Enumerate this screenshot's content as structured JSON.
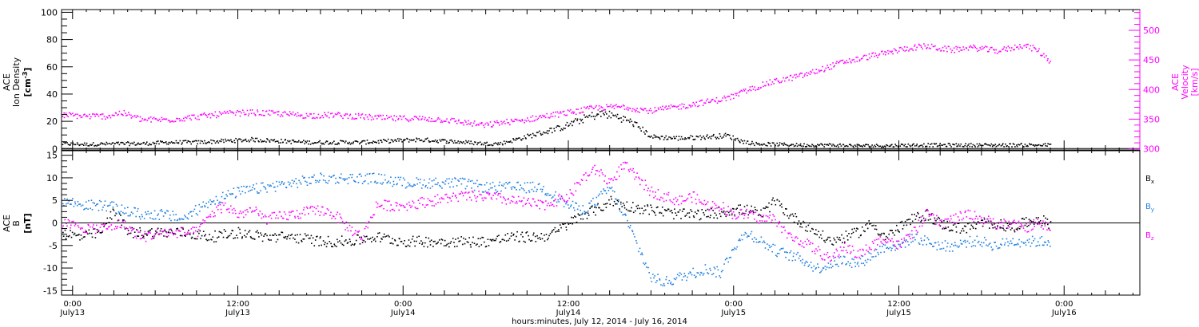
{
  "figure": {
    "xlabel": "hours:minutes, July 12, 2014 - July 16, 2014",
    "x_ticks": [
      {
        "t": 0,
        "time": "0:00",
        "date": "July13"
      },
      {
        "t": 12,
        "time": "12:00",
        "date": "July13"
      },
      {
        "t": 24,
        "time": "0:00",
        "date": "July14"
      },
      {
        "t": 36,
        "time": "12:00",
        "date": "July14"
      },
      {
        "t": 48,
        "time": "0:00",
        "date": "July15"
      },
      {
        "t": 60,
        "time": "12:00",
        "date": "July15"
      },
      {
        "t": 72,
        "time": "0:00",
        "date": "July16"
      }
    ],
    "xlim": [
      -0.8,
      77.5
    ]
  },
  "colors": {
    "black": "#000000",
    "magenta": "#ff00ff",
    "blue": "#1f7fe0"
  },
  "chart_data": [
    {
      "type": "scatter",
      "ylabel_lines": [
        "ACE",
        "Ion Density"
      ],
      "yunit_base": "[cm",
      "yunit_sup": "-3",
      "yunit_end": "]",
      "ylim": [
        -1,
        102
      ],
      "yticks": [
        0,
        20,
        40,
        60,
        80,
        100
      ],
      "right_axis": {
        "ylabel_lines": [
          "ACE",
          "Velocity",
          "[km/s]"
        ],
        "ylim": [
          298,
          535
        ],
        "yticks": [
          300,
          350,
          400,
          450,
          500
        ]
      },
      "series": [
        {
          "name": "Density",
          "color": "black",
          "x": [
            -0.8,
            1,
            3,
            5,
            7,
            9,
            11,
            13,
            15,
            17,
            19,
            21,
            23,
            25,
            27,
            28.5,
            30,
            31,
            32.5,
            34,
            35.5,
            36.5,
            37.5,
            38.5,
            39.5,
            40.5,
            41,
            42,
            44,
            46,
            47.5,
            48.5,
            49.5,
            51,
            53,
            55,
            57,
            59,
            61,
            63,
            65,
            67,
            69,
            71
          ],
          "y": [
            4,
            3.5,
            4,
            4,
            5,
            5,
            6,
            7,
            6,
            5,
            5,
            5,
            6,
            7,
            6,
            5,
            4,
            4,
            8,
            12,
            16,
            20,
            24,
            26,
            24,
            20,
            17,
            9,
            8,
            9,
            10,
            6,
            4,
            3.5,
            3,
            3,
            2.5,
            2.5,
            3,
            3,
            3,
            3,
            3,
            3
          ]
        },
        {
          "name": "Velocity",
          "color": "magenta",
          "axis": "right",
          "x": [
            -0.8,
            1,
            2.5,
            3.5,
            5,
            7,
            9,
            11,
            13,
            15,
            17,
            19,
            21,
            23,
            25,
            27,
            28.5,
            30,
            31,
            32.5,
            34,
            36,
            38,
            40,
            41,
            42,
            44,
            45.5,
            47,
            48,
            49,
            50.5,
            52,
            53,
            54,
            55,
            56,
            57,
            58,
            59,
            60,
            61,
            62,
            63,
            64,
            65,
            66,
            67,
            68,
            69,
            70,
            71
          ],
          "y": [
            358,
            356,
            356,
            362,
            350,
            350,
            355,
            360,
            362,
            360,
            357,
            358,
            355,
            352,
            352,
            350,
            345,
            340,
            345,
            348,
            355,
            362,
            370,
            372,
            368,
            365,
            372,
            378,
            384,
            390,
            400,
            412,
            420,
            425,
            432,
            440,
            448,
            452,
            458,
            462,
            468,
            472,
            474,
            470,
            468,
            472,
            470,
            466,
            470,
            476,
            468,
            448
          ]
        }
      ]
    },
    {
      "type": "scatter",
      "ylabel_lines": [
        "ACE",
        "B",
        "[nT]"
      ],
      "ylim": [
        -16,
        16
      ],
      "yticks": [
        -15,
        -10,
        -5,
        0,
        5,
        10,
        15
      ],
      "legend": [
        {
          "label": "B",
          "sub": "x",
          "color": "black"
        },
        {
          "label": "B",
          "sub": "y",
          "color": "blue"
        },
        {
          "label": "B",
          "sub": "z",
          "color": "magenta"
        }
      ],
      "series": [
        {
          "name": "Bx",
          "color": "black",
          "x": [
            -0.8,
            0.5,
            2,
            3,
            4,
            6,
            8,
            10,
            12,
            14,
            16,
            18,
            20,
            22,
            24,
            26,
            28,
            30,
            32,
            34,
            35,
            36,
            37,
            38,
            39,
            40,
            42,
            44,
            46,
            48,
            49,
            50,
            51,
            52,
            53,
            54,
            55,
            56,
            57,
            58,
            59,
            60,
            61,
            62,
            63,
            64,
            65,
            66,
            67,
            68,
            69,
            70,
            71
          ],
          "y": [
            -2,
            -3,
            -2,
            3,
            -2,
            -2,
            -2,
            -3,
            -2,
            -3,
            -3,
            -4,
            -4,
            -3,
            -4,
            -4,
            -4,
            -4,
            -3,
            -3,
            -2,
            0,
            2,
            3,
            5,
            4,
            3,
            2,
            2,
            3,
            3,
            2,
            5,
            2,
            0,
            -2,
            -4,
            -3,
            -2,
            0,
            -3,
            -1,
            1,
            2,
            0,
            -1,
            -1,
            0,
            0,
            -1,
            0,
            1,
            0
          ]
        },
        {
          "name": "By",
          "color": "blue",
          "x": [
            -0.8,
            1,
            2.5,
            3.5,
            5,
            6.5,
            8,
            9,
            10,
            11,
            12,
            14,
            16,
            18,
            20,
            22,
            24,
            26,
            28,
            30,
            32,
            34,
            35,
            36,
            37,
            38,
            39,
            40,
            41,
            42,
            43,
            44,
            45,
            46,
            47,
            48,
            49,
            50,
            51,
            52,
            53,
            54,
            55,
            56,
            57,
            58,
            59,
            60,
            61,
            62,
            63,
            64,
            65,
            66,
            67,
            68,
            69,
            70,
            71
          ],
          "y": [
            5,
            4,
            4,
            3,
            2,
            2,
            1,
            3,
            5,
            6,
            7,
            8,
            9,
            10,
            10,
            10,
            9,
            9,
            9,
            8,
            8,
            8,
            6,
            4,
            3,
            5,
            8,
            2,
            -5,
            -12,
            -13,
            -12,
            -11,
            -10,
            -11,
            -5,
            -2,
            -4,
            -6,
            -7,
            -8,
            -10,
            -9,
            -8,
            -9,
            -7,
            -5,
            -5,
            -3,
            -4,
            -5,
            -5,
            -4,
            -4,
            -5,
            -4,
            -4,
            -4,
            -4
          ]
        },
        {
          "name": "Bz",
          "color": "magenta",
          "x": [
            -0.8,
            1,
            2.5,
            3.5,
            5,
            6.5,
            8,
            9,
            10,
            11,
            12,
            13,
            14,
            16,
            18,
            19,
            20,
            21,
            22,
            24,
            26,
            28,
            30,
            32,
            34,
            36,
            37,
            38,
            39,
            40,
            41,
            42,
            43,
            44,
            45,
            46,
            47,
            48,
            49,
            50,
            51,
            52,
            53,
            54,
            55,
            56,
            57,
            58,
            59,
            60,
            61,
            62,
            63,
            64,
            65,
            66,
            67,
            68,
            69,
            70,
            71
          ],
          "y": [
            0,
            -1,
            -1,
            0,
            -3,
            -2,
            -2,
            -2,
            2,
            4,
            2,
            3,
            1,
            2,
            3,
            2,
            -1,
            -3,
            4,
            4,
            5,
            6,
            6,
            5,
            4,
            6,
            10,
            12,
            9,
            13,
            10,
            7,
            6,
            5,
            6,
            4,
            4,
            2,
            2,
            1,
            1,
            -3,
            -4,
            -6,
            -8,
            -5,
            -7,
            -5,
            -3,
            -5,
            -2,
            2,
            0,
            1,
            2,
            1,
            0,
            0,
            -1,
            0,
            -1
          ]
        }
      ]
    }
  ]
}
